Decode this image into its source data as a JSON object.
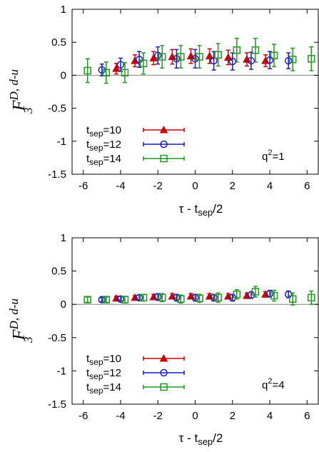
{
  "colors": {
    "tsep10": "#cc0000",
    "tsep12": "#1a1acc",
    "tsep14": "#1f9a1f",
    "axis": "#000000",
    "zeroline": "#808080"
  },
  "chart_data": [
    {
      "type": "scatter",
      "title": "",
      "ylabel_main": "F",
      "ylabel_sup": "D, d-u",
      "ylabel_sub": "3",
      "xlabel_main": "τ - t",
      "xlabel_sub": "sep",
      "xlabel_tail": "/2",
      "annotation": {
        "main": "q",
        "sup": "2",
        "tail": "=1"
      },
      "xlim": [
        -6.6,
        6.6
      ],
      "ylim": [
        -1.5,
        1
      ],
      "xticks": [
        "-6",
        "-4",
        "-2",
        "0",
        "2",
        "4",
        "6"
      ],
      "yticks": [
        "1",
        "0.5",
        "0",
        "-0.5",
        "-1",
        "-1.5"
      ],
      "legend_position": "bottom-left",
      "series": [
        {
          "key": "tsep10",
          "label_main": "t",
          "label_sub": "sep",
          "label_tail": "=10",
          "marker": "triangle",
          "x": [
            -4,
            -3,
            -2,
            -1,
            0,
            1,
            2,
            3,
            4
          ],
          "y": [
            0.1,
            0.22,
            0.26,
            0.28,
            0.29,
            0.29,
            0.27,
            0.24,
            0.22
          ],
          "err": [
            0.08,
            0.09,
            0.1,
            0.11,
            0.11,
            0.11,
            0.11,
            0.1,
            0.09
          ]
        },
        {
          "key": "tsep12",
          "label_main": "t",
          "label_sub": "sep",
          "label_tail": "=12",
          "marker": "circle",
          "x": [
            -5,
            -4,
            -3,
            -2,
            -1,
            0,
            1,
            2,
            3,
            4,
            5
          ],
          "y": [
            0.08,
            0.16,
            0.24,
            0.3,
            0.25,
            0.25,
            0.22,
            0.21,
            0.22,
            0.23,
            0.22
          ],
          "err": [
            0.09,
            0.1,
            0.12,
            0.13,
            0.14,
            0.14,
            0.14,
            0.13,
            0.13,
            0.13,
            0.12
          ]
        },
        {
          "key": "tsep14",
          "label_main": "t",
          "label_sub": "sep",
          "label_tail": "=14",
          "marker": "square",
          "x": [
            -6,
            -5,
            -4,
            -3,
            -2,
            -1,
            0,
            1,
            2,
            3,
            4,
            5,
            6
          ],
          "y": [
            0.07,
            0.04,
            0.04,
            0.18,
            0.28,
            0.28,
            0.28,
            0.31,
            0.38,
            0.38,
            0.3,
            0.24,
            0.25
          ],
          "err": [
            0.18,
            0.16,
            0.15,
            0.16,
            0.17,
            0.17,
            0.17,
            0.17,
            0.18,
            0.18,
            0.17,
            0.17,
            0.18
          ]
        }
      ]
    },
    {
      "type": "scatter",
      "title": "",
      "ylabel_main": "F",
      "ylabel_sup": "D, d-u",
      "ylabel_sub": "3",
      "xlabel_main": "τ - t",
      "xlabel_sub": "sep",
      "xlabel_tail": "/2",
      "annotation": {
        "main": "q",
        "sup": "2",
        "tail": "=4"
      },
      "xlim": [
        -6.6,
        6.6
      ],
      "ylim": [
        -1.5,
        1
      ],
      "xticks": [
        "-6",
        "-4",
        "-2",
        "0",
        "2",
        "4",
        "6"
      ],
      "yticks": [
        "1",
        "0.5",
        "0",
        "-0.5",
        "-1",
        "-1.5"
      ],
      "legend_position": "bottom-left",
      "series": [
        {
          "key": "tsep10",
          "label_main": "t",
          "label_sub": "sep",
          "label_tail": "=10",
          "marker": "triangle",
          "x": [
            -4,
            -3,
            -2,
            -1,
            0,
            1,
            2,
            3,
            4
          ],
          "y": [
            0.09,
            0.1,
            0.11,
            0.12,
            0.12,
            0.12,
            0.12,
            0.13,
            0.15
          ],
          "err": [
            0.03,
            0.03,
            0.04,
            0.04,
            0.04,
            0.04,
            0.04,
            0.04,
            0.04
          ]
        },
        {
          "key": "tsep12",
          "label_main": "t",
          "label_sub": "sep",
          "label_tail": "=12",
          "marker": "circle",
          "x": [
            -5,
            -4,
            -3,
            -2,
            -1,
            0,
            1,
            2,
            3,
            4,
            5
          ],
          "y": [
            0.07,
            0.08,
            0.1,
            0.11,
            0.1,
            0.1,
            0.1,
            0.1,
            0.14,
            0.16,
            0.15
          ],
          "err": [
            0.03,
            0.04,
            0.04,
            0.05,
            0.05,
            0.05,
            0.05,
            0.05,
            0.05,
            0.05,
            0.05
          ]
        },
        {
          "key": "tsep14",
          "label_main": "t",
          "label_sub": "sep",
          "label_tail": "=14",
          "marker": "square",
          "x": [
            -6,
            -5,
            -4,
            -3,
            -2,
            -1,
            0,
            1,
            2,
            3,
            4,
            5,
            6
          ],
          "y": [
            0.07,
            0.07,
            0.07,
            0.1,
            0.1,
            0.08,
            0.09,
            0.1,
            0.15,
            0.19,
            0.13,
            0.08,
            0.1
          ],
          "err": [
            0.04,
            0.04,
            0.05,
            0.05,
            0.06,
            0.06,
            0.06,
            0.07,
            0.07,
            0.08,
            0.08,
            0.09,
            0.1
          ]
        }
      ]
    }
  ]
}
